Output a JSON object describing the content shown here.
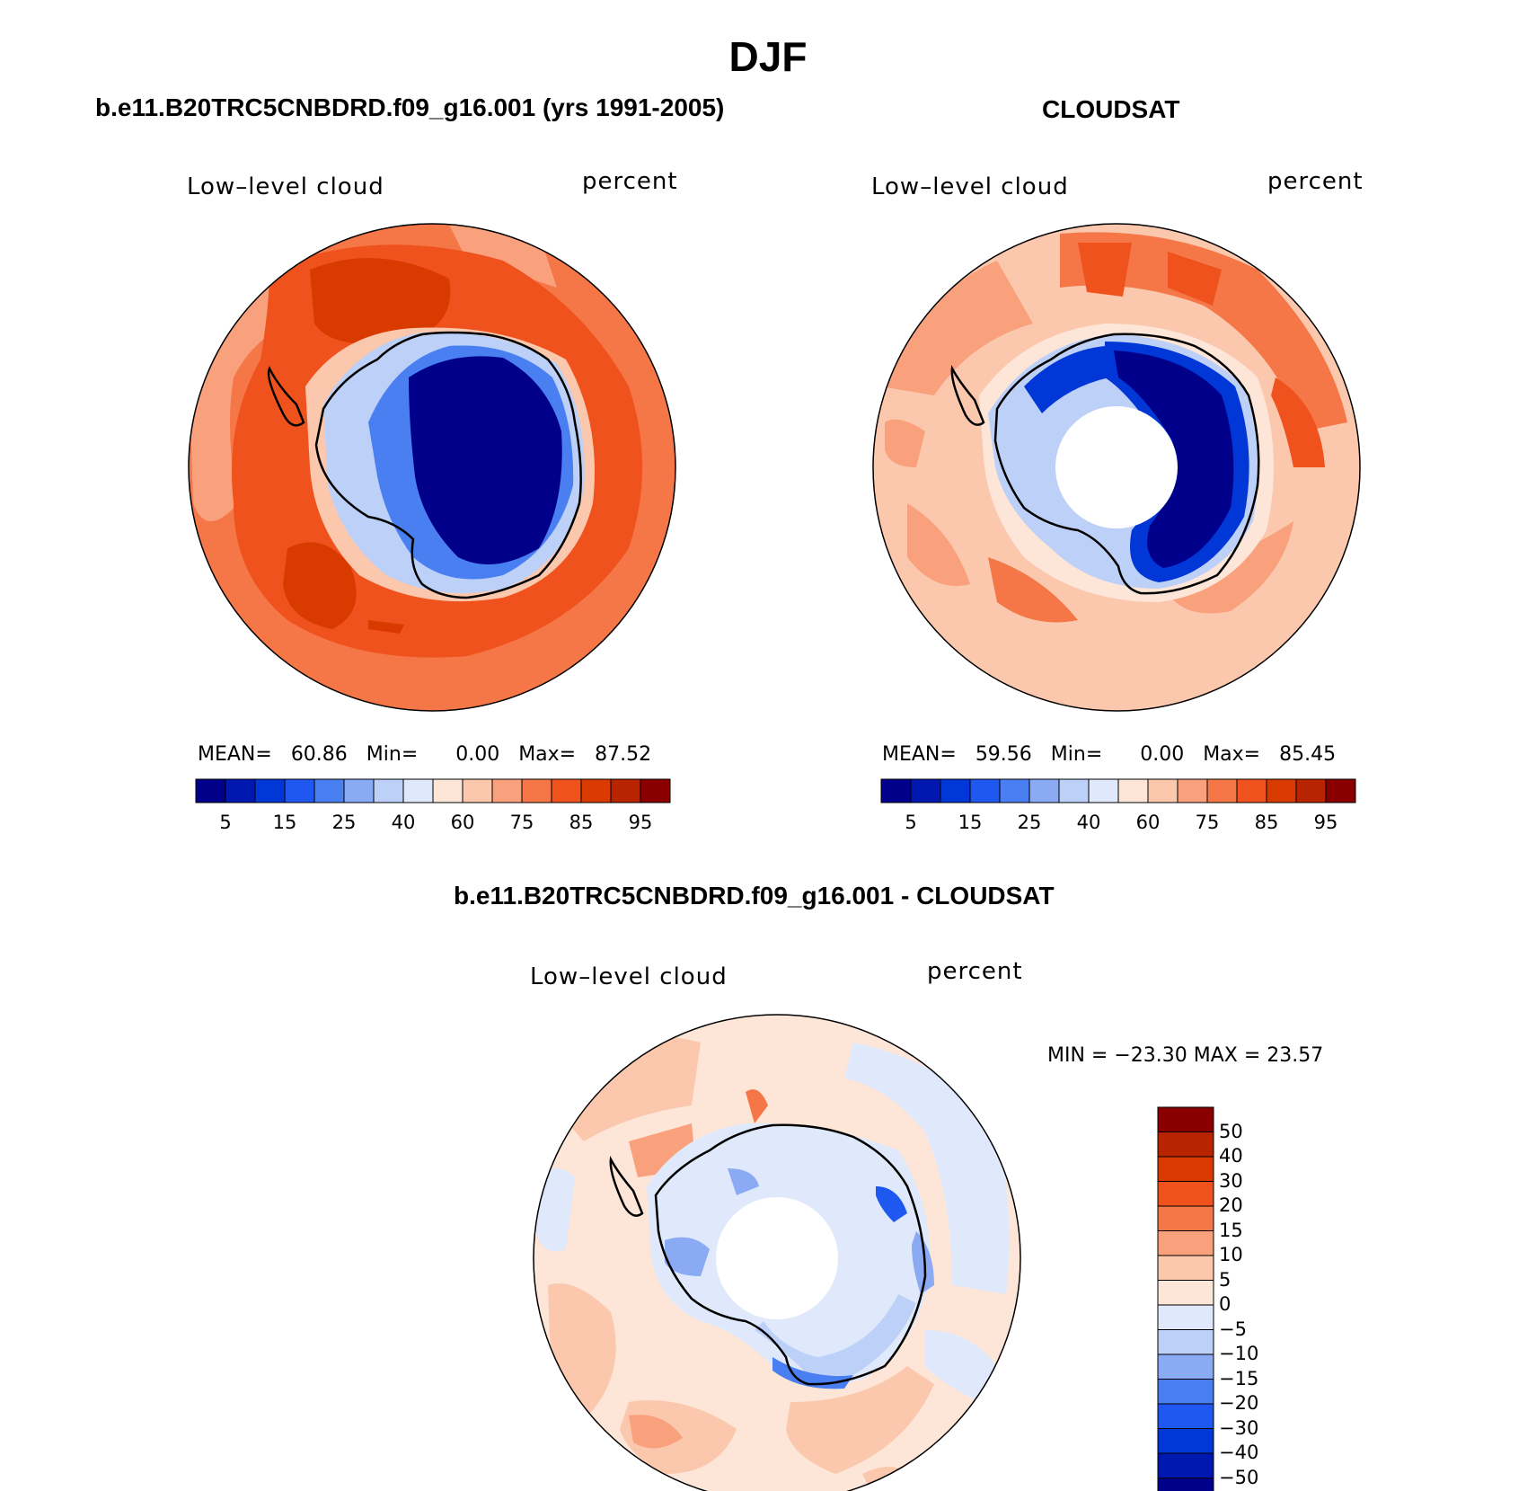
{
  "title": "DJF",
  "panels": {
    "model": {
      "header": "b.e11.B20TRC5CNBDRD.f09_g16.001 (yrs 1991-2005)",
      "left_label": "Low–level cloud",
      "right_label": "percent",
      "stats": {
        "mean_label": "MEAN=",
        "mean": "60.86",
        "min_label": "Min=",
        "min": "0.00",
        "max_label": "Max=",
        "max": "87.52"
      }
    },
    "obs": {
      "header": "CLOUDSAT",
      "left_label": "Low–level cloud",
      "right_label": "percent",
      "stats": {
        "mean_label": "MEAN=",
        "mean": "59.56",
        "min_label": "Min=",
        "min": "0.00",
        "max_label": "Max=",
        "max": "85.45"
      }
    },
    "diff": {
      "header": "b.e11.B20TRC5CNBDRD.f09_g16.001 - CLOUDSAT",
      "left_label": "Low–level cloud",
      "right_label": "percent",
      "minmax": "MIN = −23.30 MAX =   23.57"
    }
  },
  "colorbar_abs": {
    "colors": [
      "#00008a",
      "#0017b0",
      "#0037d6",
      "#1f58f0",
      "#4a7ff2",
      "#8aaaf4",
      "#bcd0f8",
      "#dfe9fb",
      "#fde6d8",
      "#fbc8ad",
      "#f9a07d",
      "#f57647",
      "#f0521d",
      "#d93a00",
      "#b82400",
      "#8a0000"
    ],
    "tick_labels": [
      "5",
      "15",
      "25",
      "40",
      "60",
      "75",
      "85",
      "95"
    ]
  },
  "colorbar_diff": {
    "colors": [
      "#8a0000",
      "#b82400",
      "#d93a00",
      "#f0521d",
      "#f57647",
      "#f9a07d",
      "#fbc8ad",
      "#fde6d8",
      "#dfe9fb",
      "#bcd0f8",
      "#8aaaf4",
      "#4a7ff2",
      "#1f58f0",
      "#0037d6",
      "#0017b0",
      "#00008a"
    ],
    "tick_labels": [
      "50",
      "40",
      "30",
      "20",
      "15",
      "10",
      "5",
      "0",
      "−5",
      "−10",
      "−15",
      "−20",
      "−30",
      "−40",
      "−50"
    ]
  },
  "map_colors": {
    "ocean_high": "#f0521d",
    "ocean_peak": "#d93a00",
    "ocean_mid": "#f57647",
    "ocean_light": "#f9a07d",
    "ocean_pale": "#fbc8ad",
    "near_zero": "#fde6d8",
    "ice_dark": "#00008a",
    "ice_mid": "#0037d6",
    "ice_light": "#8aaaf4",
    "ice_pale": "#bcd0f8",
    "diff_neg_pale": "#dfe9fb",
    "missing": "#ffffff",
    "coast": "#000000"
  }
}
